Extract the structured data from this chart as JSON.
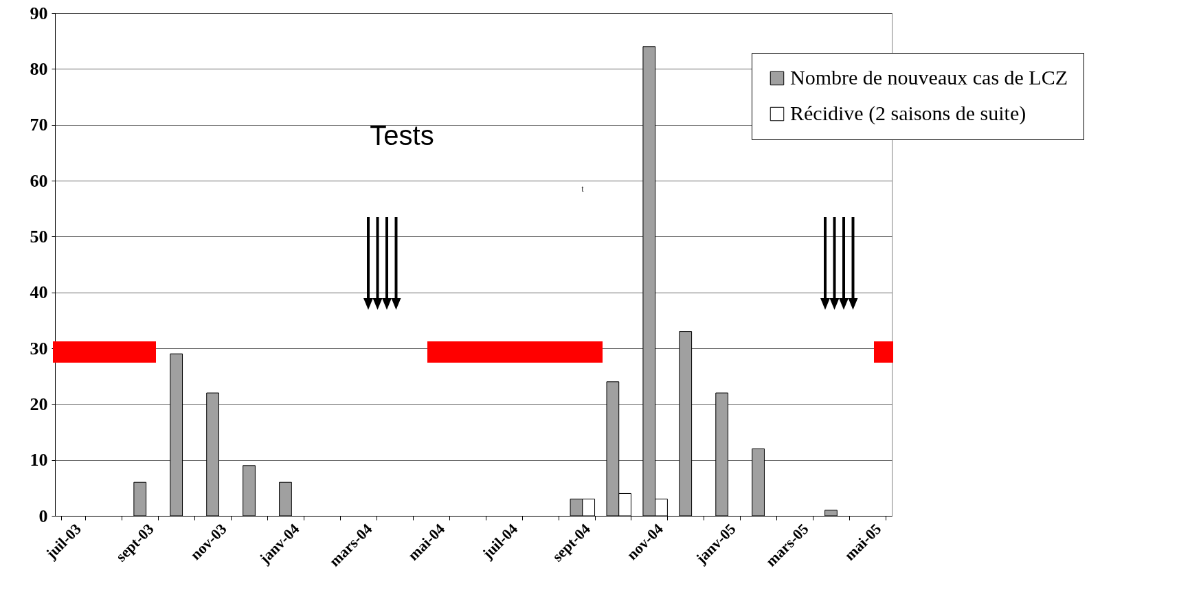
{
  "chart_data": {
    "type": "bar",
    "categories": [
      "juil-03",
      null,
      "sept-03",
      null,
      "nov-03",
      null,
      "janv-04",
      null,
      "mars-04",
      null,
      "mai-04",
      null,
      "juil-04",
      null,
      "sept-04",
      null,
      "nov-04",
      null,
      "janv-05",
      null,
      "mars-05",
      null,
      "mai-05"
    ],
    "series": [
      {
        "name": "Nombre de nouveaux cas de LCZ",
        "color": "#a0a0a0",
        "values": [
          null,
          null,
          6,
          29,
          22,
          9,
          6,
          null,
          null,
          null,
          null,
          null,
          null,
          null,
          3,
          24,
          84,
          33,
          22,
          12,
          null,
          1,
          null
        ]
      },
      {
        "name": "Récidive (2 saisons de suite)",
        "color": "#ffffff",
        "values": [
          null,
          null,
          null,
          null,
          null,
          null,
          null,
          null,
          null,
          null,
          null,
          null,
          null,
          null,
          3,
          4,
          3,
          null,
          null,
          null,
          null,
          null,
          null
        ]
      }
    ],
    "ylim": [
      0,
      90
    ],
    "yticks": [
      0,
      10,
      20,
      30,
      40,
      50,
      60,
      70,
      80,
      90
    ],
    "grid": "y",
    "legend": "top right",
    "annotations": [
      "Tests",
      "t"
    ]
  }
}
